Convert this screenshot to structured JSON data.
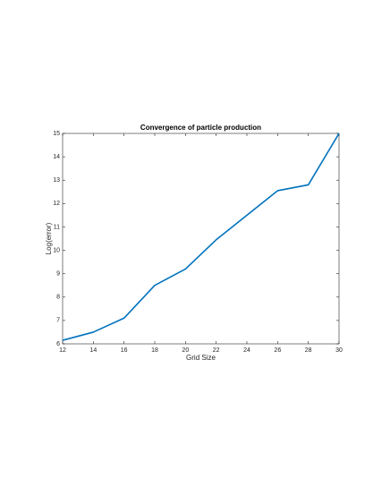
{
  "chart_data": {
    "type": "line",
    "title": "Convergence of particle production",
    "x_label": "Grid Size",
    "y_label": "Log(error)",
    "x": [
      12,
      14,
      16,
      18,
      20,
      22,
      24,
      26,
      28,
      30
    ],
    "series": [
      {
        "color": "#0072bd",
        "values": [
          6.15,
          6.5,
          7.1,
          8.5,
          9.2,
          10.45,
          11.5,
          12.55,
          12.8,
          15
        ]
      }
    ],
    "xlim": [
      12,
      30
    ],
    "xticks": [
      12,
      14,
      16,
      18,
      20,
      22,
      24,
      26,
      28,
      30
    ],
    "ylim": [
      6,
      15
    ],
    "yticks": [
      6,
      7,
      8,
      9,
      10,
      11,
      12,
      13,
      14,
      15
    ],
    "grid": false
  }
}
